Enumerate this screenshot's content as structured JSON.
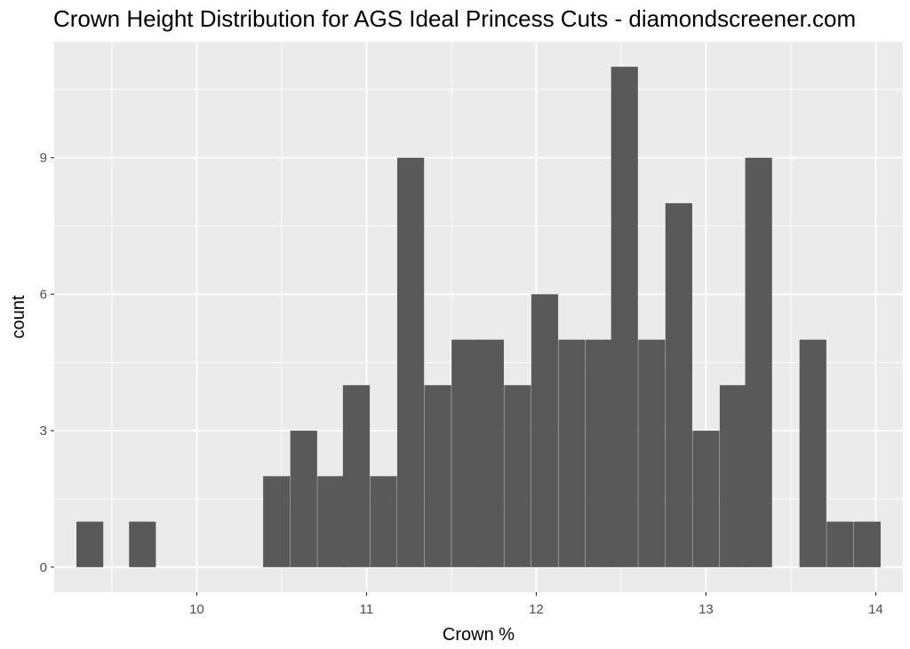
{
  "chart_data": {
    "type": "bar",
    "title": "Crown Height Distribution for AGS Ideal Princess Cuts - diamondscreener.com",
    "xlabel": "Crown %",
    "ylabel": "count",
    "x_ticks": [
      "10",
      "11",
      "12",
      "13",
      "14"
    ],
    "y_ticks": [
      "0",
      "3",
      "6",
      "9"
    ],
    "xlim": [
      9.16,
      14.16
    ],
    "ylim": [
      -0.55,
      11.55
    ],
    "bin_width": 0.158,
    "bins": [
      {
        "x": 9.37,
        "count": 1
      },
      {
        "x": 9.68,
        "count": 1
      },
      {
        "x": 10.47,
        "count": 2
      },
      {
        "x": 10.63,
        "count": 3
      },
      {
        "x": 10.79,
        "count": 2
      },
      {
        "x": 10.94,
        "count": 4
      },
      {
        "x": 11.1,
        "count": 2
      },
      {
        "x": 11.26,
        "count": 9
      },
      {
        "x": 11.42,
        "count": 4
      },
      {
        "x": 11.58,
        "count": 5
      },
      {
        "x": 11.73,
        "count": 5
      },
      {
        "x": 11.89,
        "count": 4
      },
      {
        "x": 12.05,
        "count": 6
      },
      {
        "x": 12.21,
        "count": 5
      },
      {
        "x": 12.37,
        "count": 5
      },
      {
        "x": 12.52,
        "count": 11
      },
      {
        "x": 12.68,
        "count": 5
      },
      {
        "x": 12.84,
        "count": 8
      },
      {
        "x": 13.0,
        "count": 3
      },
      {
        "x": 13.16,
        "count": 4
      },
      {
        "x": 13.31,
        "count": 9
      },
      {
        "x": 13.63,
        "count": 5
      },
      {
        "x": 13.79,
        "count": 1
      },
      {
        "x": 13.95,
        "count": 1
      }
    ],
    "bar_color": "#595959",
    "panel_color": "#ebebeb",
    "grid": true,
    "legend": "none"
  }
}
